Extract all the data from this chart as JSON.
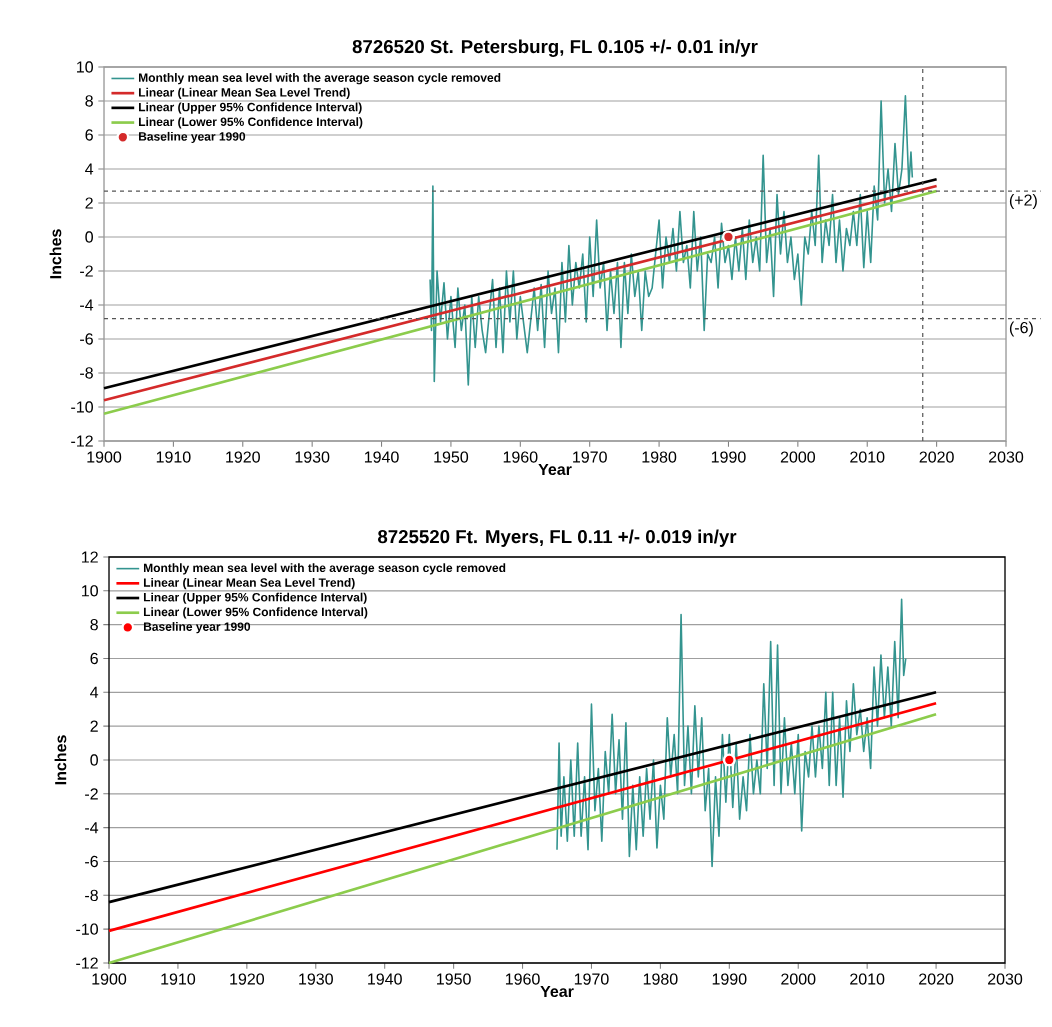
{
  "chart_data": [
    {
      "type": "line",
      "title": "8726520 St. Petersburg, FL      0.105 +/- 0.01 in/yr",
      "xlabel": "Year",
      "ylabel": "Inches",
      "xlim": [
        1900,
        2030
      ],
      "ylim": [
        -12,
        10
      ],
      "xticks": [
        1900,
        1910,
        1920,
        1930,
        1940,
        1950,
        1960,
        1970,
        1980,
        1990,
        2000,
        2010,
        2020,
        2030
      ],
      "yticks": [
        -12,
        -10,
        -8,
        -6,
        -4,
        -2,
        0,
        2,
        4,
        6,
        8,
        10
      ],
      "grid": "y",
      "legend": "top left",
      "annotations": [
        {
          "text": "(+2)",
          "x": 2030,
          "y": 2.7
        },
        {
          "text": "(-6)",
          "x": 2030,
          "y": -4.8
        }
      ],
      "ref_lines": [
        {
          "axis": "y",
          "value": 2.7,
          "color": "#555555",
          "line_style": "dashed"
        },
        {
          "axis": "y",
          "value": -4.8,
          "color": "#555555",
          "line_style": "dashed"
        },
        {
          "axis": "x",
          "value": 2018,
          "color": "#555555",
          "line_style": "dashed"
        }
      ],
      "series": [
        {
          "name": "Monthly mean sea level with the average season cycle removed",
          "type": "line",
          "color": "#33948f",
          "x": [
            1947.0,
            1947.2,
            1947.4,
            1947.6,
            1948,
            1948.5,
            1949,
            1949.5,
            1950,
            1950.6,
            1951,
            1951.5,
            1952,
            1952.5,
            1953,
            1953.5,
            1954,
            1954.5,
            1955,
            1956,
            1956.5,
            1957,
            1957.5,
            1958,
            1958.5,
            1959,
            1959.5,
            1960,
            1961,
            1962,
            1962.5,
            1963,
            1963.5,
            1964,
            1964.5,
            1965,
            1965.5,
            1966,
            1966.5,
            1967,
            1967.5,
            1968,
            1968.5,
            1969,
            1969.5,
            1970,
            1970.5,
            1971,
            1971.5,
            1972,
            1972.5,
            1973,
            1973.5,
            1974,
            1974.5,
            1975,
            1975.5,
            1976,
            1976.5,
            1977,
            1977.5,
            1978,
            1978.5,
            1979,
            1980,
            1980.5,
            1981,
            1981.5,
            1982,
            1982.5,
            1983,
            1983.5,
            1984,
            1984.5,
            1985,
            1985.5,
            1986,
            1986.5,
            1987,
            1987.5,
            1988,
            1988.5,
            1989,
            1989.5,
            1990,
            1990.5,
            1991,
            1991.5,
            1992,
            1992.5,
            1993,
            1993.5,
            1994,
            1994.5,
            1995,
            1995.5,
            1996,
            1996.5,
            1997,
            1997.5,
            1998,
            1998.5,
            1999,
            1999.5,
            2000,
            2000.5,
            2001,
            2001.5,
            2002,
            2002.5,
            2003,
            2003.5,
            2004,
            2004.5,
            2005,
            2005.5,
            2006,
            2006.5,
            2007,
            2007.5,
            2008,
            2008.5,
            2009,
            2009.5,
            2010,
            2010.5,
            2011,
            2011.5,
            2012,
            2012.5,
            2013,
            2013.5,
            2014,
            2014.5,
            2015,
            2015.5,
            2016,
            2016.3,
            2016.5
          ],
          "values": [
            -2.5,
            -5.5,
            3.0,
            -8.5,
            -2,
            -5,
            -2.7,
            -6,
            -3.5,
            -6.5,
            -3,
            -5.5,
            -4,
            -8.7,
            -3.5,
            -6.5,
            -3.5,
            -5.5,
            -6.8,
            -2.5,
            -6.5,
            -3,
            -6.8,
            -2,
            -5,
            -2,
            -6,
            -3.5,
            -6.8,
            -3,
            -5.5,
            -2.8,
            -6.5,
            -2,
            -4.5,
            -3,
            -6.8,
            -1.5,
            -5,
            -0.5,
            -4,
            -1.5,
            -3,
            -1,
            -5,
            0,
            -3.5,
            1,
            -3,
            -1.5,
            -5.5,
            -2,
            -4.5,
            -1.5,
            -6.5,
            -1.5,
            -4.5,
            -1,
            -3.5,
            -2,
            -5.5,
            -2,
            -3.5,
            -3,
            1,
            -3,
            0,
            -1.5,
            0.5,
            -2,
            1.5,
            -1.5,
            -0.5,
            -3,
            1.5,
            -2,
            0,
            -5.5,
            -1,
            -1.5,
            0,
            -3,
            0.8,
            -1.5,
            -0.5,
            -2.5,
            0,
            -2,
            0.5,
            -2.5,
            1.0,
            -1.5,
            0,
            -2,
            4.8,
            -1.5,
            0.5,
            -3.5,
            2.5,
            -1,
            1.5,
            -1.5,
            0,
            -2.5,
            -1,
            -4,
            0,
            -1,
            1.5,
            -0.5,
            4.8,
            -1.5,
            1,
            -0.5,
            2.5,
            -1.5,
            1,
            -2,
            0.5,
            -0.5,
            1.5,
            -0.5,
            2.5,
            -1.8,
            1.5,
            -1.5,
            3,
            1,
            8.0,
            2,
            4,
            1.5,
            5.5,
            2.5,
            4.0,
            8.3,
            3,
            5,
            3.5
          ]
        },
        {
          "name": "Linear (Linear Mean Sea Level Trend)",
          "type": "line",
          "color": "#d42a2a",
          "x": [
            1900,
            2020
          ],
          "values": [
            -9.6,
            3.0
          ]
        },
        {
          "name": "Linear (Upper 95% Confidence Interval)",
          "type": "line",
          "color": "#000000",
          "x": [
            1900,
            2020
          ],
          "values": [
            -8.9,
            3.4
          ]
        },
        {
          "name": "Linear (Lower 95% Confidence Interval)",
          "type": "line",
          "color": "#8ccc4c",
          "x": [
            1900,
            2020
          ],
          "values": [
            -10.4,
            2.7
          ]
        },
        {
          "name": "Baseline year 1990",
          "type": "scatter",
          "color": "#d42a2a",
          "x": [
            1990
          ],
          "values": [
            0
          ]
        }
      ]
    },
    {
      "type": "line",
      "title": "8725520 Ft. Myers, FL      0.11 +/- 0.019 in/yr",
      "xlabel": "Year",
      "ylabel": "Inches",
      "xlim": [
        1900,
        2030
      ],
      "ylim": [
        -12,
        12
      ],
      "xticks": [
        1900,
        1910,
        1920,
        1930,
        1940,
        1950,
        1960,
        1970,
        1980,
        1990,
        2000,
        2010,
        2020,
        2030
      ],
      "yticks": [
        -12,
        -10,
        -8,
        -6,
        -4,
        -2,
        0,
        2,
        4,
        6,
        8,
        10,
        12
      ],
      "grid": "y",
      "legend": "top left",
      "series": [
        {
          "name": "Monthly mean sea level with the average season cycle removed",
          "type": "line",
          "color": "#33948f",
          "x": [
            1965,
            1965.3,
            1965.6,
            1966,
            1966.5,
            1967,
            1967.5,
            1968,
            1968.5,
            1969,
            1969.5,
            1970,
            1970.5,
            1971,
            1971.5,
            1972,
            1972.5,
            1973,
            1973.5,
            1974,
            1974.5,
            1975,
            1975.5,
            1976,
            1976.5,
            1977,
            1977.5,
            1978,
            1978.5,
            1979,
            1979.5,
            1980,
            1980.5,
            1981,
            1981.5,
            1982,
            1982.5,
            1983,
            1983.5,
            1984,
            1984.5,
            1985,
            1985.5,
            1986,
            1986.5,
            1987,
            1987.5,
            1988,
            1988.5,
            1989,
            1989.5,
            1990,
            1990.5,
            1991,
            1991.5,
            1992,
            1992.5,
            1993,
            1993.5,
            1994,
            1994.5,
            1995,
            1995.5,
            1996,
            1996.5,
            1997,
            1997.5,
            1998,
            1998.5,
            1999,
            1999.5,
            2000,
            2000.5,
            2001,
            2001.5,
            2002,
            2002.5,
            2003,
            2003.5,
            2004,
            2004.5,
            2005,
            2005.5,
            2006,
            2006.5,
            2007,
            2007.5,
            2008,
            2008.5,
            2009,
            2009.5,
            2010,
            2010.5,
            2011,
            2011.5,
            2012,
            2012.5,
            2013,
            2013.5,
            2014,
            2014.5,
            2015,
            2015.3,
            2015.6
          ],
          "values": [
            -5.3,
            1.0,
            -4.5,
            -1,
            -4.8,
            0,
            -4.5,
            1.0,
            -4.5,
            -1,
            -5.3,
            3.3,
            -3,
            -0.5,
            -4.8,
            0.5,
            -2,
            2.7,
            -2,
            1.2,
            -3.5,
            2.2,
            -5.7,
            -1.5,
            -5.3,
            -1,
            -4.5,
            -0.5,
            -3.5,
            0,
            -5.2,
            -1.5,
            -3.5,
            2.5,
            -1,
            1.5,
            -2,
            8.6,
            -1.5,
            2.0,
            -2,
            3.2,
            -1,
            2.5,
            -3,
            -0.5,
            -6.3,
            -1,
            -4.5,
            1.5,
            -2.5,
            1.5,
            -2.8,
            1.0,
            -3.5,
            -1,
            -3,
            1.5,
            -2,
            0,
            -2,
            4.5,
            -0.5,
            7.0,
            -1.5,
            6.8,
            -2,
            2.5,
            -1.5,
            1,
            -2,
            1.5,
            -4.2,
            0.5,
            -1,
            2,
            -1,
            2,
            -0.5,
            4.0,
            -1.5,
            4.0,
            -1.5,
            2.5,
            -2.2,
            3.5,
            0.5,
            4.5,
            1.5,
            3.0,
            0.5,
            2.5,
            -0.5,
            5.5,
            2.0,
            6.2,
            2.5,
            5.5,
            2.0,
            7.0,
            2.5,
            9.5,
            5,
            6.0
          ]
        },
        {
          "name": "Linear (Linear Mean Sea Level Trend)",
          "type": "line",
          "color": "#ff0000",
          "x": [
            1900,
            2020
          ],
          "values": [
            -10.1,
            3.35
          ]
        },
        {
          "name": "Linear (Upper 95% Confidence Interval)",
          "type": "line",
          "color": "#000000",
          "x": [
            1900,
            2020
          ],
          "values": [
            -8.4,
            4.0
          ]
        },
        {
          "name": "Linear (Lower 95% Confidence Interval)",
          "type": "line",
          "color": "#8ccc4c",
          "x": [
            1900,
            2020
          ],
          "values": [
            -12,
            2.7
          ]
        },
        {
          "name": "Baseline year 1990",
          "type": "scatter",
          "color": "#ff0000",
          "x": [
            1990
          ],
          "values": [
            0
          ]
        }
      ]
    }
  ]
}
